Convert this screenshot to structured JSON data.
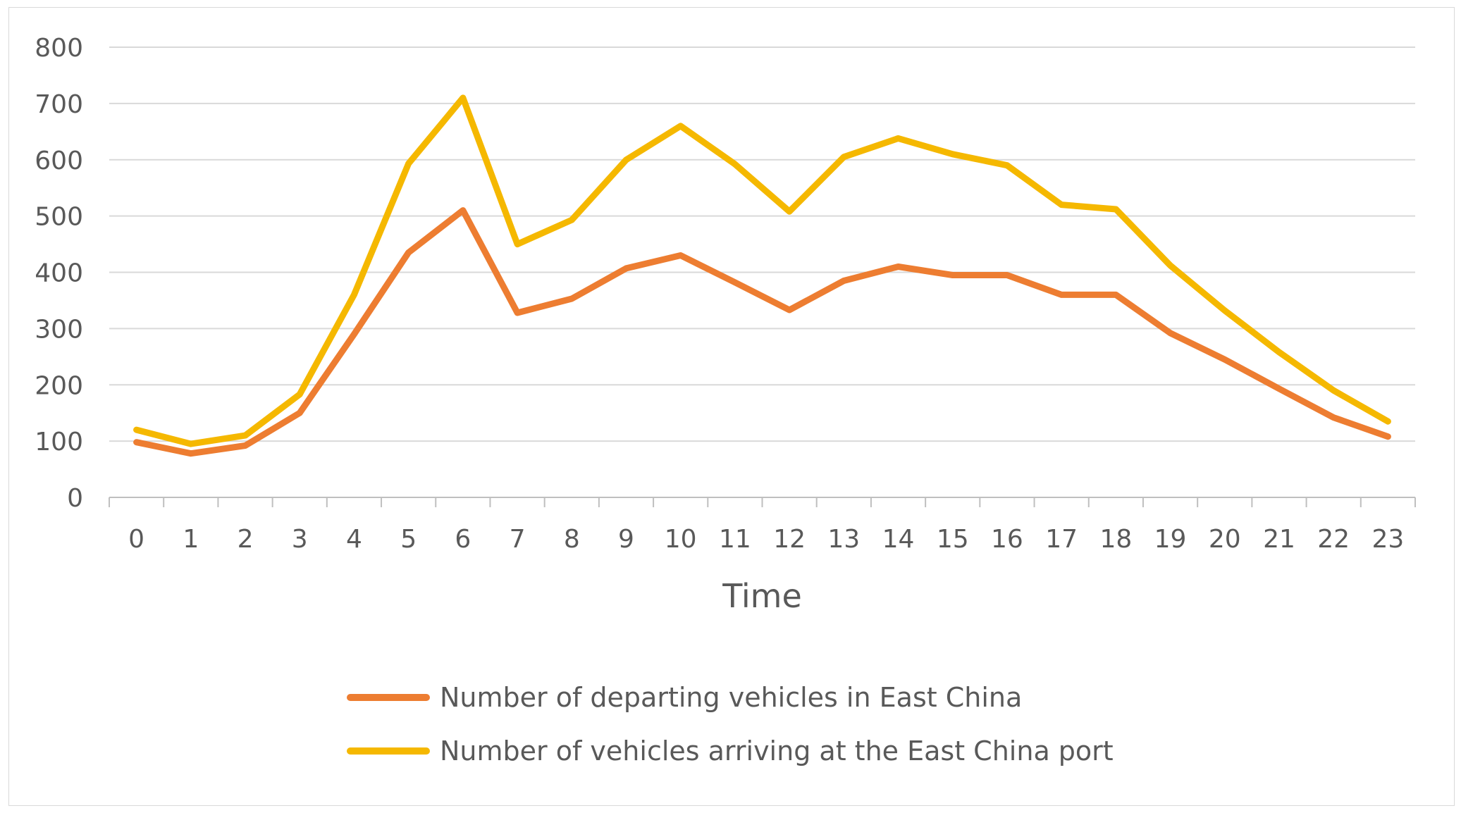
{
  "chart_data": {
    "type": "line",
    "title": "",
    "xlabel": "Time",
    "ylabel": "",
    "ylim": [
      0,
      800
    ],
    "yticks": [
      0,
      100,
      200,
      300,
      400,
      500,
      600,
      700,
      800
    ],
    "grid": "horizontal",
    "legend_position": "bottom",
    "categories": [
      "0",
      "1",
      "2",
      "3",
      "4",
      "5",
      "6",
      "7",
      "8",
      "9",
      "10",
      "11",
      "12",
      "13",
      "14",
      "15",
      "16",
      "17",
      "18",
      "19",
      "20",
      "21",
      "22",
      "23"
    ],
    "series": [
      {
        "name": "Number of departing vehicles in East China",
        "color": "#ED7D31",
        "values": [
          98,
          78,
          92,
          150,
          290,
          435,
          510,
          328,
          353,
          407,
          430,
          382,
          333,
          385,
          410,
          395,
          395,
          360,
          360,
          292,
          245,
          193,
          142,
          108
        ]
      },
      {
        "name": "Number of vehicles arriving at the East China port",
        "color": "#F5B800",
        "values": [
          120,
          95,
          110,
          183,
          360,
          593,
          710,
          450,
          493,
          600,
          660,
          592,
          508,
          605,
          638,
          610,
          590,
          520,
          512,
          412,
          332,
          258,
          190,
          135
        ]
      }
    ]
  }
}
